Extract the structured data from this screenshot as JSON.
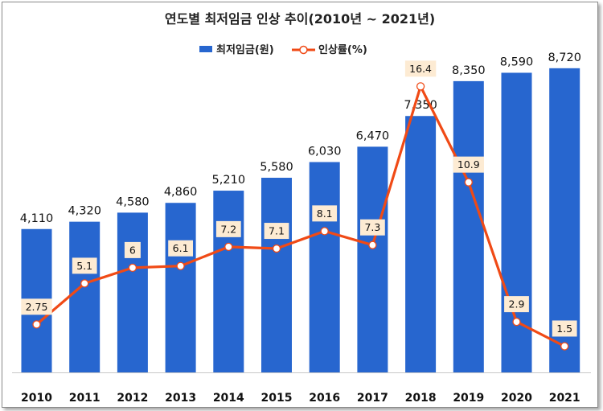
{
  "chart_data": {
    "type": "bar",
    "title": "연도별 최저임금 인상 추이(2010년 ~ 2021년)",
    "categories": [
      "2010",
      "2011",
      "2012",
      "2013",
      "2014",
      "2015",
      "2016",
      "2017",
      "2018",
      "2019",
      "2020",
      "2021"
    ],
    "series": [
      {
        "name": "최저임금(원)",
        "type": "bar",
        "color": "#2766CF",
        "values": [
          4110,
          4320,
          4580,
          4860,
          5210,
          5580,
          6030,
          6470,
          7350,
          8350,
          8590,
          8720
        ],
        "labels": [
          "4,110",
          "4,320",
          "4,580",
          "4,860",
          "5,210",
          "5,580",
          "6,030",
          "6,470",
          "7,350",
          "8,350",
          "8,590",
          "8,720"
        ]
      },
      {
        "name": "인상률(%)",
        "type": "line",
        "color": "#F04A16",
        "marker": "circle-hollow",
        "values": [
          2.75,
          5.1,
          6,
          6.1,
          7.2,
          7.1,
          8.1,
          7.3,
          16.4,
          10.9,
          2.9,
          1.5
        ],
        "labels": [
          "2.75",
          "5.1",
          "6",
          "6.1",
          "7.2",
          "7.1",
          "8.1",
          "7.3",
          "16.4",
          "10.9",
          "2.9",
          "1.5"
        ]
      }
    ],
    "ylim": [
      0,
      9500
    ],
    "y2lim": [
      0,
      19
    ],
    "legend": "top-center",
    "grid": false,
    "label_box_color": "#FDEBD3"
  }
}
